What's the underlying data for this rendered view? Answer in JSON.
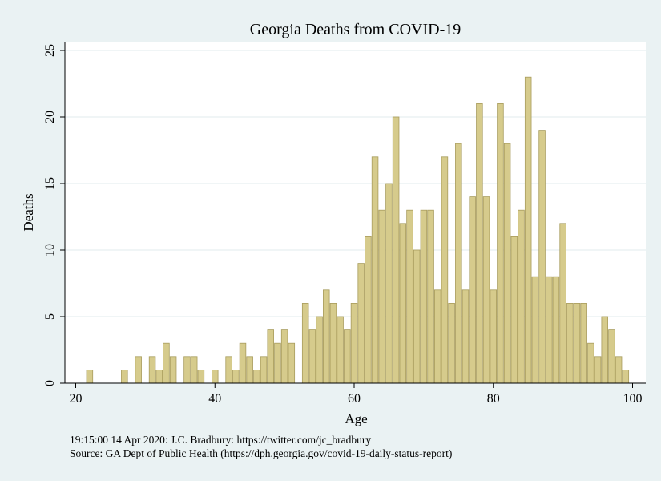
{
  "chart_data": {
    "type": "bar",
    "title": "Georgia Deaths from COVID-19",
    "xlabel": "Age",
    "ylabel": "Deaths",
    "xlim": [
      20,
      100
    ],
    "ylim": [
      0,
      25
    ],
    "xticks": [
      20,
      40,
      60,
      80,
      100
    ],
    "yticks": [
      0,
      5,
      10,
      15,
      20,
      25
    ],
    "grid": true,
    "x": [
      20,
      21,
      22,
      23,
      24,
      25,
      26,
      27,
      28,
      29,
      30,
      31,
      32,
      33,
      34,
      35,
      36,
      37,
      38,
      39,
      40,
      41,
      42,
      43,
      44,
      45,
      46,
      47,
      48,
      49,
      50,
      51,
      52,
      53,
      54,
      55,
      56,
      57,
      58,
      59,
      60,
      61,
      62,
      63,
      64,
      65,
      66,
      67,
      68,
      69,
      70,
      71,
      72,
      73,
      74,
      75,
      76,
      77,
      78,
      79,
      80,
      81,
      82,
      83,
      84,
      85,
      86,
      87,
      88,
      89,
      90,
      91,
      92,
      93,
      94,
      95,
      96,
      97,
      98,
      99,
      100
    ],
    "values": [
      0,
      0,
      1,
      0,
      0,
      0,
      0,
      1,
      0,
      2,
      0,
      2,
      1,
      3,
      2,
      0,
      2,
      2,
      1,
      0,
      1,
      0,
      2,
      1,
      3,
      2,
      1,
      2,
      4,
      3,
      4,
      3,
      0,
      6,
      4,
      5,
      7,
      6,
      5,
      4,
      6,
      9,
      11,
      17,
      13,
      15,
      20,
      12,
      13,
      10,
      13,
      13,
      7,
      17,
      6,
      18,
      7,
      14,
      21,
      14,
      7,
      21,
      18,
      11,
      13,
      23,
      8,
      19,
      8,
      8,
      12,
      6,
      6,
      6,
      3,
      2,
      5,
      4,
      2,
      1,
      0
    ],
    "bar_color": "#d6cb8c",
    "bar_edge_color": "#a89c5d",
    "background_color": "#eaf2f3",
    "plot_background_color": "#ffffff",
    "grid_color": "#e8eff0"
  },
  "notes": {
    "line1": "19:15:00  14 Apr 2020: J.C. Bradbury: https://twitter.com/jc_bradbury",
    "line2": "Source: GA Dept of Public Health (https://dph.georgia.gov/covid-19-daily-status-report)"
  }
}
